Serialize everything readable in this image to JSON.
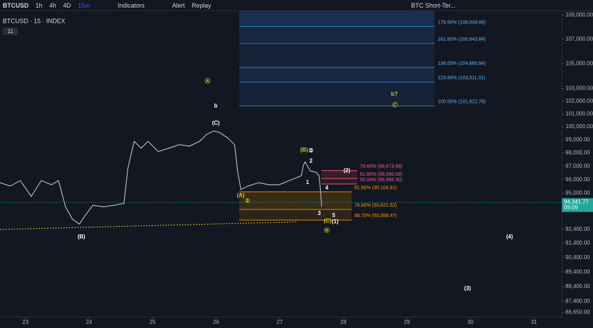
{
  "toolbar": {
    "symbol": "BTCUSD",
    "intervals": [
      "1h",
      "4h",
      "4D",
      "15m"
    ],
    "indicators": "Indicators",
    "alert": "Alert",
    "replay": "Replay",
    "layout_name": "BTC Short-Ter..."
  },
  "chart_data": {
    "type": "line",
    "title": "BTCUSD · 15 · INDEX",
    "indicator_count": "11",
    "log_scale": true,
    "x": [
      22.6,
      22.76,
      22.92,
      23.09,
      23.25,
      23.41,
      23.52,
      23.63,
      23.74,
      23.85,
      23.96,
      24.06,
      24.23,
      24.39,
      24.55,
      24.61,
      24.71,
      24.82,
      24.93,
      25.09,
      25.26,
      25.42,
      25.58,
      25.74,
      25.85,
      25.96,
      26.05,
      26.18,
      26.29,
      26.34,
      26.39,
      26.5,
      26.67,
      26.83,
      26.99,
      27.15,
      27.26,
      27.34,
      27.37,
      27.4,
      27.48,
      27.57,
      27.62,
      27.64,
      27.66
    ],
    "series": [
      {
        "color": "#b2b5be",
        "values": [
          95781,
          95532,
          95935,
          94771,
          95935,
          95631,
          95935,
          94017,
          93120,
          92774,
          93518,
          94118,
          94017,
          94118,
          94267,
          96812,
          98886,
          98366,
          98886,
          98106,
          98366,
          98630,
          98521,
          98886,
          99416,
          99681,
          99575,
          99151,
          98630,
          96551,
          95274,
          95532,
          95781,
          95631,
          95631,
          95935,
          96137,
          96291,
          97065,
          97326,
          96657,
          96551,
          96291,
          95274,
          94017
        ]
      }
    ],
    "xlim": [
      22.6,
      31.44
    ],
    "ylim": [
      86350,
      109350
    ],
    "xticks": [
      23,
      24,
      25,
      26,
      27,
      28,
      29,
      30,
      31
    ],
    "yticks": [
      {
        "value": 109000,
        "label": "109,000.00"
      },
      {
        "value": 107000,
        "label": "107,000.00"
      },
      {
        "value": 105000,
        "label": "105,000.00"
      },
      {
        "value": 103000,
        "label": "103,000.00"
      },
      {
        "value": 102000,
        "label": "102,000.00"
      },
      {
        "value": 101000,
        "label": "101,000.00"
      },
      {
        "value": 100000,
        "label": "100,000.00"
      },
      {
        "value": 99000,
        "label": "99,000.00"
      },
      {
        "value": 98000,
        "label": "98,000.00"
      },
      {
        "value": 97000,
        "label": "97,000.00"
      },
      {
        "value": 96000,
        "label": "96,000.00"
      },
      {
        "value": 95000,
        "label": "95,000.00"
      },
      {
        "value": 92400,
        "label": "92,400.00"
      },
      {
        "value": 91400,
        "label": "91,400.00"
      },
      {
        "value": 90400,
        "label": "90,400.00"
      },
      {
        "value": 89400,
        "label": "89,400.00"
      },
      {
        "value": 88400,
        "label": "88,400.00"
      },
      {
        "value": 87400,
        "label": "87,400.00"
      },
      {
        "value": 86650,
        "label": "86,650.00"
      }
    ],
    "last_price": {
      "value": 94341.77,
      "label": "94,341.77"
    },
    "countdown": "05:09",
    "fib_upper": [
      {
        "value": 108049.88,
        "label": "178.60% (108,049.88)"
      },
      {
        "value": 106642.84,
        "label": "161.80% (106,642.84)"
      },
      {
        "value": 104680.84,
        "label": "138.00% (104,680.84)"
      },
      {
        "value": 103511.31,
        "label": "123.60% (103,511.31)"
      },
      {
        "value": 101622.78,
        "label": "100.00% (101,622.78)"
      }
    ],
    "fib_support": [
      {
        "value": 95104.91,
        "label": "61.80% (95,104.91)"
      },
      {
        "value": 93821.62,
        "label": "78.60% (93,821.62)"
      },
      {
        "value": 93058.47,
        "label": "88.70% (93,058.47)"
      }
    ],
    "fib_resistance": [
      {
        "value": 96673.66,
        "label": "78.60% (96,673.66)"
      },
      {
        "value": 96090.09,
        "label": "61.80% (96,090.09)"
      },
      {
        "value": 95682.3,
        "label": "50.00% (95,682.30)"
      }
    ],
    "annotations": [
      "Ⓐ",
      "b",
      "(C)",
      "b?",
      "Ⓒ",
      "(B)",
      "②",
      "2",
      "1",
      "4",
      "(2)",
      "(A)",
      "①",
      "3",
      "5",
      "(C)",
      "(1)",
      "Ⓑ",
      "(B)",
      "(4)",
      "(3)"
    ]
  }
}
